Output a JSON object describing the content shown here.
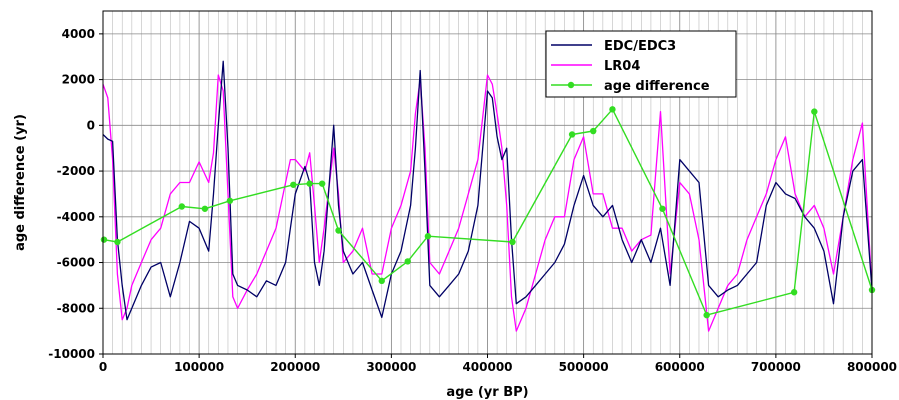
{
  "chart_data": {
    "type": "line",
    "xlabel": "age (yr BP)",
    "ylabel": "age difference (yr)",
    "xlim": [
      0,
      800000
    ],
    "ylim": [
      -10000,
      5000
    ],
    "x_ticks": [
      0,
      100000,
      200000,
      300000,
      400000,
      500000,
      600000,
      700000,
      800000
    ],
    "y_ticks": [
      -10000,
      -8000,
      -6000,
      -4000,
      -2000,
      0,
      2000,
      4000
    ],
    "x_tick_labels": [
      "0",
      "100000",
      "200000",
      "300000",
      "400000",
      "500000",
      "600000",
      "700000",
      "800000"
    ],
    "y_tick_labels": [
      "-10000",
      "-8000",
      "-6000",
      "-4000",
      "-2000",
      "0",
      "2000",
      "4000"
    ],
    "grid": true,
    "legend_position": "top-right",
    "series": [
      {
        "name": "EDC/EDC3",
        "color": "#000066",
        "marker": false,
        "x": [
          0,
          5000,
          10000,
          15000,
          20000,
          25000,
          30000,
          40000,
          50000,
          60000,
          70000,
          80000,
          90000,
          100000,
          110000,
          115000,
          120000,
          125000,
          130000,
          135000,
          140000,
          150000,
          160000,
          170000,
          180000,
          190000,
          195000,
          200000,
          210000,
          215000,
          220000,
          225000,
          230000,
          240000,
          245000,
          250000,
          260000,
          270000,
          280000,
          290000,
          300000,
          310000,
          320000,
          325000,
          330000,
          335000,
          340000,
          350000,
          360000,
          370000,
          380000,
          390000,
          400000,
          405000,
          410000,
          415000,
          420000,
          425000,
          430000,
          440000,
          450000,
          460000,
          470000,
          480000,
          490000,
          500000,
          510000,
          520000,
          530000,
          540000,
          550000,
          560000,
          570000,
          580000,
          590000,
          600000,
          610000,
          620000,
          630000,
          640000,
          650000,
          660000,
          670000,
          680000,
          690000,
          700000,
          710000,
          720000,
          730000,
          740000,
          750000,
          760000,
          770000,
          780000,
          790000,
          800000
        ],
        "y": [
          -400,
          -600,
          -700,
          -5000,
          -7000,
          -8500,
          -8000,
          -7000,
          -6200,
          -6000,
          -7500,
          -6000,
          -4200,
          -4500,
          -5500,
          -3000,
          0,
          2800,
          -1000,
          -6500,
          -7000,
          -7200,
          -7500,
          -6800,
          -7000,
          -6000,
          -4500,
          -3000,
          -1800,
          -2500,
          -6000,
          -7000,
          -5500,
          0,
          -3500,
          -5500,
          -6500,
          -6000,
          -7200,
          -8400,
          -6500,
          -5500,
          -3500,
          -1000,
          2400,
          -2000,
          -7000,
          -7500,
          -7000,
          -6500,
          -5500,
          -3500,
          1500,
          1200,
          -500,
          -1500,
          -1000,
          -5000,
          -7800,
          -7500,
          -7000,
          -6500,
          -6000,
          -5200,
          -3500,
          -2200,
          -3500,
          -4000,
          -3500,
          -5000,
          -6000,
          -5000,
          -6000,
          -4500,
          -7000,
          -1500,
          -2000,
          -2500,
          -7000,
          -7500,
          -7200,
          -7000,
          -6500,
          -6000,
          -3500,
          -2500,
          -3000,
          -3200,
          -4000,
          -4500,
          -5500,
          -7800,
          -4000,
          -2000,
          -1500,
          -7200
        ]
      },
      {
        "name": "LR04",
        "color": "#ff00ff",
        "marker": false,
        "x": [
          0,
          5000,
          10000,
          15000,
          20000,
          25000,
          30000,
          40000,
          50000,
          60000,
          70000,
          80000,
          90000,
          100000,
          110000,
          115000,
          120000,
          125000,
          130000,
          135000,
          140000,
          150000,
          160000,
          170000,
          180000,
          190000,
          195000,
          200000,
          210000,
          215000,
          220000,
          225000,
          230000,
          240000,
          245000,
          250000,
          260000,
          270000,
          280000,
          290000,
          300000,
          310000,
          320000,
          325000,
          330000,
          335000,
          340000,
          350000,
          360000,
          370000,
          380000,
          390000,
          400000,
          405000,
          410000,
          415000,
          420000,
          425000,
          430000,
          440000,
          450000,
          460000,
          470000,
          480000,
          490000,
          500000,
          510000,
          520000,
          530000,
          540000,
          550000,
          560000,
          570000,
          580000,
          590000,
          600000,
          610000,
          620000,
          630000,
          640000,
          650000,
          660000,
          670000,
          680000,
          690000,
          700000,
          710000,
          720000,
          730000,
          740000,
          750000,
          760000,
          770000,
          780000,
          790000,
          800000
        ],
        "y": [
          1800,
          1200,
          -1500,
          -6500,
          -8500,
          -8000,
          -7000,
          -6000,
          -5000,
          -4500,
          -3000,
          -2500,
          -2500,
          -1600,
          -2500,
          -1200,
          2200,
          1500,
          -3000,
          -7500,
          -8000,
          -7200,
          -6500,
          -5500,
          -4500,
          -2500,
          -1500,
          -1500,
          -2000,
          -1200,
          -3500,
          -6000,
          -4500,
          -1000,
          -3000,
          -6000,
          -5500,
          -4500,
          -6500,
          -6500,
          -4500,
          -3500,
          -2000,
          500,
          2000,
          -1000,
          -6000,
          -6500,
          -5500,
          -4500,
          -3000,
          -1500,
          2200,
          1800,
          500,
          -1000,
          -3500,
          -7500,
          -9000,
          -8000,
          -6500,
          -5000,
          -4000,
          -4000,
          -1500,
          -500,
          -3000,
          -3000,
          -4500,
          -4500,
          -5500,
          -5000,
          -4800,
          600,
          -6500,
          -2500,
          -3000,
          -5000,
          -9000,
          -8000,
          -7000,
          -6500,
          -5000,
          -4000,
          -3000,
          -1500,
          -500,
          -3000,
          -4000,
          -3500,
          -4500,
          -6500,
          -4000,
          -1500,
          100,
          -7200
        ]
      },
      {
        "name": "age difference",
        "color": "#33dd22",
        "marker": true,
        "x": [
          1000,
          15000,
          82000,
          106000,
          132000,
          198000,
          215000,
          228000,
          245000,
          290000,
          317000,
          338000,
          426000,
          488000,
          510000,
          530000,
          582000,
          628000,
          719000,
          740000,
          800000
        ],
        "y": [
          -5000,
          -5100,
          -3550,
          -3650,
          -3300,
          -2600,
          -2550,
          -2550,
          -4600,
          -6800,
          -5950,
          -4850,
          -5100,
          -400,
          -250,
          700,
          -3650,
          -8300,
          -7300,
          600,
          -7200
        ]
      }
    ]
  }
}
